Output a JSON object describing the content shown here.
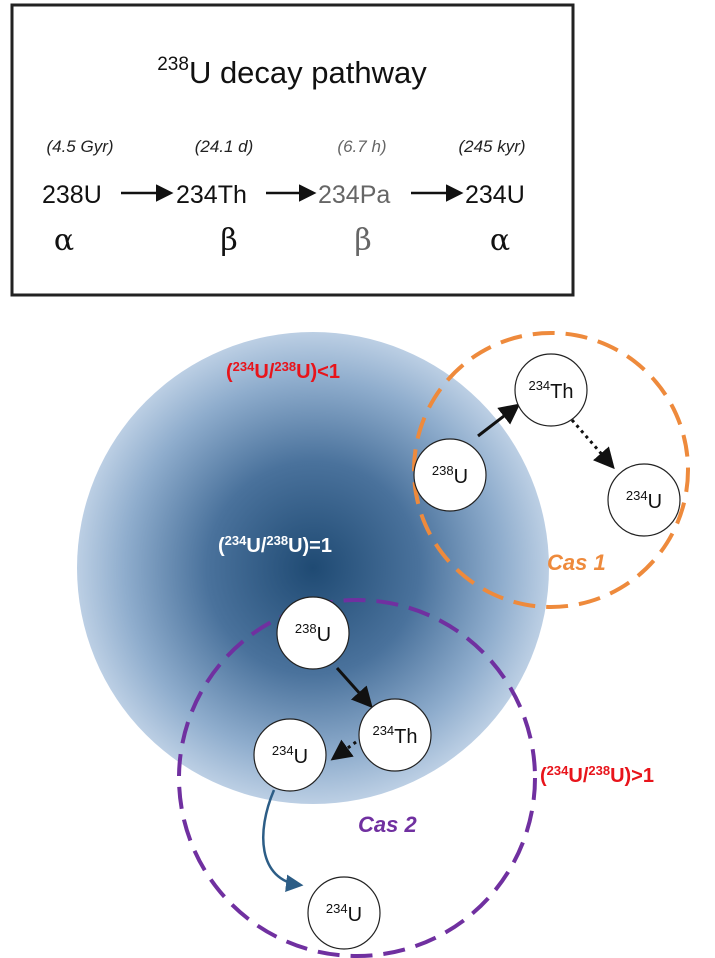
{
  "title": {
    "sup": "238",
    "text": "U decay pathway"
  },
  "chain": [
    {
      "half_life": "(4.5 Gyr)",
      "mass": "238",
      "symbol": "U",
      "mode": "α"
    },
    {
      "half_life": "(24.1 d)",
      "mass": "234",
      "symbol": "Th",
      "mode": "β"
    },
    {
      "half_life": "(6.7 h)",
      "mass": "234",
      "symbol": "Pa",
      "mode": "β"
    },
    {
      "half_life": "(245 kyr)",
      "mass": "234",
      "symbol": "U",
      "mode": "α"
    }
  ],
  "ratios": {
    "less": {
      "sup1": "234",
      "mid": "U/",
      "sup2": "238",
      "tail": "U)<1"
    },
    "equal": {
      "sup1": "234",
      "mid": "U/",
      "sup2": "238",
      "tail": "U)=1"
    },
    "greater": {
      "sup1": "234",
      "mid": "U/",
      "sup2": "238",
      "tail": "U)>1"
    }
  },
  "nodes": {
    "cas1_u238": {
      "sup": "238",
      "text": "U"
    },
    "cas1_th234": {
      "sup": "234",
      "text": "Th"
    },
    "cas1_u234": {
      "sup": "234",
      "text": "U"
    },
    "cas2_u238": {
      "sup": "238",
      "text": "U"
    },
    "cas2_th234": {
      "sup": "234",
      "text": "Th"
    },
    "cas2_u234": {
      "sup": "234",
      "text": "U"
    },
    "cas2_u234_out": {
      "sup": "234",
      "text": "U"
    }
  },
  "cases": {
    "cas1": "Cas 1",
    "cas2": "Cas 2"
  },
  "colors": {
    "ratio_red": "#e8141b",
    "cas1": "#ee8a3c",
    "cas2": "#7030a0",
    "grain_center": "#1f4a73",
    "grain_edge": "#b9cde3",
    "curved_arrow": "#2c5d86"
  }
}
